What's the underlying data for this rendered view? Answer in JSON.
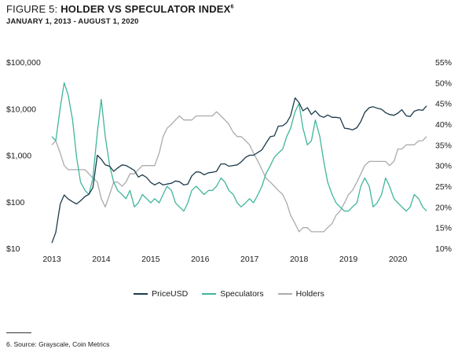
{
  "header": {
    "figure_label": "FIGURE 5: ",
    "title": "HOLDER VS SPECULATOR INDEX",
    "title_footnote_marker": "6",
    "subtitle": "JANUARY 1, 2013 - AUGUST 1, 2020"
  },
  "footnote": "6. Source: Grayscale, Coin Metrics",
  "chart_data": {
    "type": "line",
    "title": "HOLDER VS SPECULATOR INDEX",
    "subtitle": "JANUARY 1, 2013 - AUGUST 1, 2020",
    "legend_position": "bottom",
    "grid": false,
    "x_axis": {
      "ticks": [
        "2013",
        "2014",
        "2015",
        "2016",
        "2017",
        "2018",
        "2019",
        "2020"
      ],
      "range": [
        2013.0,
        2020.58
      ]
    },
    "y_left": {
      "scale": "log",
      "range": [
        10,
        100000
      ],
      "ticks": [
        10,
        100,
        1000,
        10000,
        100000
      ],
      "tick_labels": [
        "$10",
        "$100",
        "$1,000",
        "$10,000",
        "$100,000"
      ]
    },
    "y_right": {
      "scale": "linear",
      "range": [
        10,
        55
      ],
      "ticks": [
        10,
        15,
        20,
        25,
        30,
        35,
        40,
        45,
        50,
        55
      ],
      "tick_labels": [
        "10%",
        "15%",
        "20%",
        "25%",
        "30%",
        "35%",
        "40%",
        "45%",
        "50%",
        "55%"
      ]
    },
    "series": [
      {
        "name": "PriceUSD",
        "axis": "left",
        "color": "#1b3a4b",
        "points": [
          [
            2013.0,
            13
          ],
          [
            2013.08,
            22
          ],
          [
            2013.17,
            90
          ],
          [
            2013.25,
            140
          ],
          [
            2013.33,
            115
          ],
          [
            2013.42,
            100
          ],
          [
            2013.5,
            90
          ],
          [
            2013.58,
            105
          ],
          [
            2013.67,
            130
          ],
          [
            2013.75,
            145
          ],
          [
            2013.83,
            200
          ],
          [
            2013.92,
            1000
          ],
          [
            2014.0,
            820
          ],
          [
            2014.08,
            620
          ],
          [
            2014.17,
            580
          ],
          [
            2014.25,
            450
          ],
          [
            2014.33,
            530
          ],
          [
            2014.42,
            620
          ],
          [
            2014.5,
            600
          ],
          [
            2014.58,
            540
          ],
          [
            2014.67,
            470
          ],
          [
            2014.75,
            340
          ],
          [
            2014.83,
            380
          ],
          [
            2014.92,
            330
          ],
          [
            2015.0,
            260
          ],
          [
            2015.08,
            230
          ],
          [
            2015.17,
            260
          ],
          [
            2015.25,
            230
          ],
          [
            2015.33,
            240
          ],
          [
            2015.42,
            250
          ],
          [
            2015.5,
            280
          ],
          [
            2015.58,
            270
          ],
          [
            2015.67,
            230
          ],
          [
            2015.75,
            240
          ],
          [
            2015.83,
            360
          ],
          [
            2015.92,
            440
          ],
          [
            2016.0,
            430
          ],
          [
            2016.08,
            380
          ],
          [
            2016.17,
            420
          ],
          [
            2016.25,
            430
          ],
          [
            2016.33,
            450
          ],
          [
            2016.42,
            650
          ],
          [
            2016.5,
            650
          ],
          [
            2016.58,
            580
          ],
          [
            2016.67,
            600
          ],
          [
            2016.75,
            620
          ],
          [
            2016.83,
            720
          ],
          [
            2016.92,
            900
          ],
          [
            2017.0,
            1000
          ],
          [
            2017.08,
            1000
          ],
          [
            2017.17,
            1150
          ],
          [
            2017.25,
            1300
          ],
          [
            2017.33,
            1800
          ],
          [
            2017.42,
            2500
          ],
          [
            2017.5,
            2600
          ],
          [
            2017.58,
            4200
          ],
          [
            2017.67,
            4300
          ],
          [
            2017.75,
            5000
          ],
          [
            2017.83,
            7000
          ],
          [
            2017.92,
            17000
          ],
          [
            2018.0,
            13500
          ],
          [
            2018.08,
            9000
          ],
          [
            2018.17,
            10500
          ],
          [
            2018.25,
            7500
          ],
          [
            2018.33,
            9000
          ],
          [
            2018.42,
            7000
          ],
          [
            2018.5,
            6500
          ],
          [
            2018.58,
            7300
          ],
          [
            2018.67,
            6500
          ],
          [
            2018.75,
            6500
          ],
          [
            2018.83,
            6300
          ],
          [
            2018.92,
            3800
          ],
          [
            2019.0,
            3700
          ],
          [
            2019.08,
            3500
          ],
          [
            2019.17,
            3900
          ],
          [
            2019.25,
            5300
          ],
          [
            2019.33,
            8300
          ],
          [
            2019.42,
            10500
          ],
          [
            2019.5,
            11000
          ],
          [
            2019.58,
            10200
          ],
          [
            2019.67,
            9700
          ],
          [
            2019.75,
            8200
          ],
          [
            2019.83,
            7500
          ],
          [
            2019.92,
            7200
          ],
          [
            2020.0,
            8000
          ],
          [
            2020.08,
            9500
          ],
          [
            2020.17,
            7000
          ],
          [
            2020.25,
            6800
          ],
          [
            2020.33,
            8800
          ],
          [
            2020.42,
            9500
          ],
          [
            2020.5,
            9200
          ],
          [
            2020.58,
            11500
          ]
        ]
      },
      {
        "name": "Speculators",
        "axis": "right",
        "color": "#3fb59b",
        "points": [
          [
            2013.0,
            37
          ],
          [
            2013.08,
            36
          ],
          [
            2013.17,
            44
          ],
          [
            2013.25,
            50
          ],
          [
            2013.33,
            47
          ],
          [
            2013.42,
            41
          ],
          [
            2013.5,
            32
          ],
          [
            2013.58,
            26
          ],
          [
            2013.67,
            24
          ],
          [
            2013.75,
            23
          ],
          [
            2013.83,
            27
          ],
          [
            2013.92,
            38
          ],
          [
            2014.0,
            46
          ],
          [
            2014.08,
            37
          ],
          [
            2014.17,
            30
          ],
          [
            2014.25,
            26
          ],
          [
            2014.33,
            24
          ],
          [
            2014.42,
            23
          ],
          [
            2014.5,
            22
          ],
          [
            2014.58,
            24
          ],
          [
            2014.67,
            20
          ],
          [
            2014.75,
            21
          ],
          [
            2014.83,
            23
          ],
          [
            2014.92,
            22
          ],
          [
            2015.0,
            21
          ],
          [
            2015.08,
            22
          ],
          [
            2015.17,
            21
          ],
          [
            2015.25,
            23
          ],
          [
            2015.33,
            25
          ],
          [
            2015.42,
            24
          ],
          [
            2015.5,
            21
          ],
          [
            2015.58,
            20
          ],
          [
            2015.67,
            19
          ],
          [
            2015.75,
            21
          ],
          [
            2015.83,
            24
          ],
          [
            2015.92,
            25
          ],
          [
            2016.0,
            24
          ],
          [
            2016.08,
            23
          ],
          [
            2016.17,
            24
          ],
          [
            2016.25,
            24
          ],
          [
            2016.33,
            25
          ],
          [
            2016.42,
            27
          ],
          [
            2016.5,
            26
          ],
          [
            2016.58,
            24
          ],
          [
            2016.67,
            23
          ],
          [
            2016.75,
            21
          ],
          [
            2016.83,
            20
          ],
          [
            2016.92,
            21
          ],
          [
            2017.0,
            22
          ],
          [
            2017.08,
            21
          ],
          [
            2017.17,
            23
          ],
          [
            2017.25,
            25
          ],
          [
            2017.33,
            28
          ],
          [
            2017.42,
            30
          ],
          [
            2017.5,
            32
          ],
          [
            2017.58,
            33
          ],
          [
            2017.67,
            34
          ],
          [
            2017.75,
            37
          ],
          [
            2017.83,
            39
          ],
          [
            2017.92,
            43
          ],
          [
            2018.0,
            45
          ],
          [
            2018.08,
            39
          ],
          [
            2018.17,
            35
          ],
          [
            2018.25,
            36
          ],
          [
            2018.33,
            41
          ],
          [
            2018.42,
            37
          ],
          [
            2018.5,
            31
          ],
          [
            2018.58,
            26
          ],
          [
            2018.67,
            23
          ],
          [
            2018.75,
            21
          ],
          [
            2018.83,
            20
          ],
          [
            2018.92,
            19
          ],
          [
            2019.0,
            19
          ],
          [
            2019.08,
            20
          ],
          [
            2019.17,
            21
          ],
          [
            2019.25,
            25
          ],
          [
            2019.33,
            27
          ],
          [
            2019.42,
            25
          ],
          [
            2019.5,
            20
          ],
          [
            2019.58,
            21
          ],
          [
            2019.67,
            23
          ],
          [
            2019.75,
            27
          ],
          [
            2019.83,
            25
          ],
          [
            2019.92,
            22
          ],
          [
            2020.0,
            21
          ],
          [
            2020.08,
            20
          ],
          [
            2020.17,
            19
          ],
          [
            2020.25,
            20
          ],
          [
            2020.33,
            23
          ],
          [
            2020.42,
            22
          ],
          [
            2020.5,
            20
          ],
          [
            2020.58,
            19
          ]
        ]
      },
      {
        "name": "Holders",
        "axis": "right",
        "color": "#ababab",
        "points": [
          [
            2013.0,
            35
          ],
          [
            2013.08,
            36
          ],
          [
            2013.17,
            33
          ],
          [
            2013.25,
            30
          ],
          [
            2013.33,
            29
          ],
          [
            2013.42,
            29
          ],
          [
            2013.5,
            29
          ],
          [
            2013.58,
            29
          ],
          [
            2013.67,
            29
          ],
          [
            2013.75,
            28
          ],
          [
            2013.83,
            27
          ],
          [
            2013.92,
            26
          ],
          [
            2014.0,
            22
          ],
          [
            2014.08,
            20
          ],
          [
            2014.17,
            23
          ],
          [
            2014.25,
            26
          ],
          [
            2014.33,
            26
          ],
          [
            2014.42,
            25
          ],
          [
            2014.5,
            26
          ],
          [
            2014.58,
            28
          ],
          [
            2014.67,
            28
          ],
          [
            2014.75,
            29
          ],
          [
            2014.83,
            30
          ],
          [
            2014.92,
            30
          ],
          [
            2015.0,
            30
          ],
          [
            2015.08,
            30
          ],
          [
            2015.17,
            33
          ],
          [
            2015.25,
            37
          ],
          [
            2015.33,
            39
          ],
          [
            2015.42,
            40
          ],
          [
            2015.5,
            41
          ],
          [
            2015.58,
            42
          ],
          [
            2015.67,
            41
          ],
          [
            2015.75,
            41
          ],
          [
            2015.83,
            41
          ],
          [
            2015.92,
            42
          ],
          [
            2016.0,
            42
          ],
          [
            2016.08,
            42
          ],
          [
            2016.17,
            42
          ],
          [
            2016.25,
            42
          ],
          [
            2016.33,
            43
          ],
          [
            2016.42,
            42
          ],
          [
            2016.5,
            41
          ],
          [
            2016.58,
            40
          ],
          [
            2016.67,
            38
          ],
          [
            2016.75,
            37
          ],
          [
            2016.83,
            37
          ],
          [
            2016.92,
            36
          ],
          [
            2017.0,
            35
          ],
          [
            2017.08,
            33
          ],
          [
            2017.17,
            31
          ],
          [
            2017.25,
            29
          ],
          [
            2017.33,
            27
          ],
          [
            2017.42,
            26
          ],
          [
            2017.5,
            25
          ],
          [
            2017.58,
            24
          ],
          [
            2017.67,
            23
          ],
          [
            2017.75,
            21
          ],
          [
            2017.83,
            18
          ],
          [
            2017.92,
            16
          ],
          [
            2018.0,
            14
          ],
          [
            2018.08,
            15
          ],
          [
            2018.17,
            15
          ],
          [
            2018.25,
            14
          ],
          [
            2018.33,
            14
          ],
          [
            2018.42,
            14
          ],
          [
            2018.5,
            14
          ],
          [
            2018.58,
            15
          ],
          [
            2018.67,
            16
          ],
          [
            2018.75,
            18
          ],
          [
            2018.83,
            19
          ],
          [
            2018.92,
            21
          ],
          [
            2019.0,
            23
          ],
          [
            2019.08,
            24
          ],
          [
            2019.17,
            26
          ],
          [
            2019.25,
            28
          ],
          [
            2019.33,
            30
          ],
          [
            2019.42,
            31
          ],
          [
            2019.5,
            31
          ],
          [
            2019.58,
            31
          ],
          [
            2019.67,
            31
          ],
          [
            2019.75,
            31
          ],
          [
            2019.83,
            30
          ],
          [
            2019.92,
            31
          ],
          [
            2020.0,
            34
          ],
          [
            2020.08,
            34
          ],
          [
            2020.17,
            35
          ],
          [
            2020.25,
            35
          ],
          [
            2020.33,
            35
          ],
          [
            2020.42,
            36
          ],
          [
            2020.5,
            36
          ],
          [
            2020.58,
            37
          ]
        ]
      }
    ]
  }
}
